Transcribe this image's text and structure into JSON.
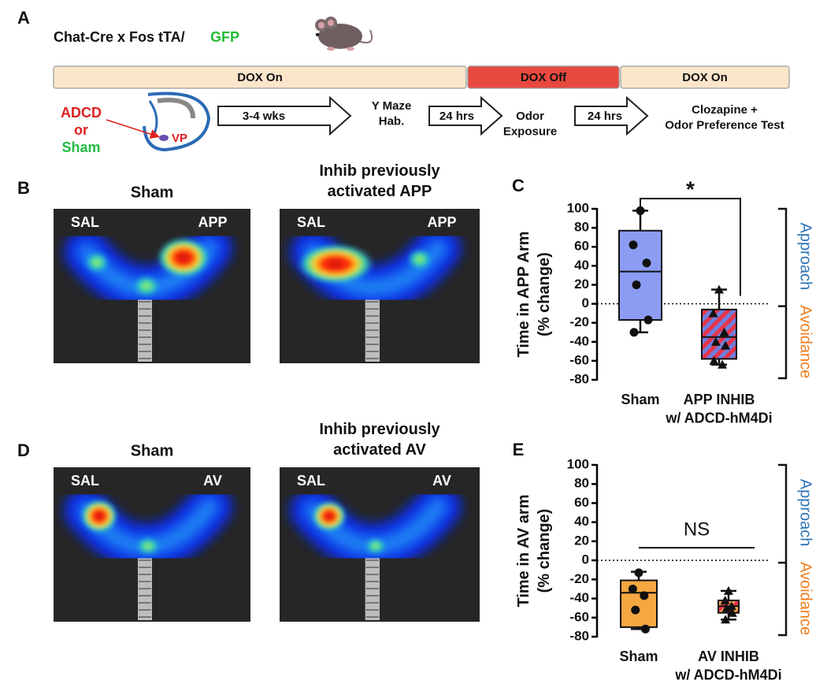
{
  "panel_a": {
    "label": "A",
    "title": "Chat-Cre x Fos tTA/",
    "title_highlight": "GFP",
    "timeline": [
      "DOX On",
      "DOX Off",
      "DOX On"
    ],
    "injection": [
      "ADCD",
      "or",
      "Sham"
    ],
    "region": "VP",
    "durations": [
      "3-4 wks",
      "24 hrs",
      "24 hrs"
    ],
    "stages": [
      "Y Maze\nHab.",
      "Odor\nExposure",
      "Clozapine +\nOdor Preference Test"
    ]
  },
  "panel_b": {
    "label": "B",
    "images": [
      {
        "title": "Sham",
        "left_arm": "SAL",
        "right_arm": "APP"
      },
      {
        "title": "Inhib previously\nactivated APP",
        "left_arm": "SAL",
        "right_arm": "APP"
      }
    ]
  },
  "panel_d": {
    "label": "D",
    "images": [
      {
        "title": "Sham",
        "left_arm": "SAL",
        "right_arm": "AV"
      },
      {
        "title": "Inhib previously\nactivated AV",
        "left_arm": "SAL",
        "right_arm": "AV"
      }
    ]
  },
  "chart_data": [
    {
      "type": "box",
      "label": "C",
      "ylabel": "Time in APP  Arm\n(% change)",
      "categories": [
        "Sham",
        "APP INHIB\nw/ ADCD-hM4Di"
      ],
      "ylim": [
        -80,
        100
      ],
      "yticks": [
        -80,
        -60,
        -40,
        -20,
        0,
        20,
        40,
        60,
        80,
        100
      ],
      "zero_line": true,
      "annotation": "*",
      "side_labels": [
        "Approach",
        "Avoidance"
      ],
      "side_colors": [
        "#2e75b6",
        "#f07d1e"
      ],
      "boxes": [
        {
          "color": "#8c9cf3",
          "marker": "circle",
          "min": -30,
          "q1": -17,
          "median": 34,
          "q3": 77,
          "max": 98,
          "points": [
            98,
            62,
            43,
            20,
            -17,
            -30
          ]
        },
        {
          "color": "#6f7fe0",
          "hatch": "#e8344a",
          "marker": "triangle",
          "min": -64,
          "q1": -58,
          "median": -35,
          "q3": -6,
          "max": 15,
          "points": [
            15,
            -10,
            -30,
            -40,
            -44,
            -60,
            -64
          ]
        }
      ]
    },
    {
      "type": "box",
      "label": "E",
      "ylabel": "Time in AV arm\n(% change)",
      "categories": [
        "Sham",
        "AV INHIB\nw/ ADCD-hM4Di"
      ],
      "ylim": [
        -80,
        100
      ],
      "yticks": [
        -80,
        -60,
        -40,
        -20,
        0,
        20,
        40,
        60,
        80,
        100
      ],
      "zero_line": true,
      "annotation": "NS",
      "side_labels": [
        "Approach",
        "Avoidance"
      ],
      "side_colors": [
        "#2e75b6",
        "#f07d1e"
      ],
      "boxes": [
        {
          "color": "#f5a742",
          "marker": "circle",
          "min": -72,
          "q1": -70,
          "median": -34,
          "q3": -21,
          "max": -12,
          "points": [
            -13,
            -30,
            -37,
            -52,
            -72
          ]
        },
        {
          "color": "#f5a742",
          "hatch": "#e8344a",
          "marker": "triangle",
          "min": -62,
          "q1": -55,
          "median": -48,
          "q3": -42,
          "max": -32,
          "points": [
            -32,
            -42,
            -48,
            -50,
            -55,
            -62
          ]
        }
      ]
    }
  ]
}
